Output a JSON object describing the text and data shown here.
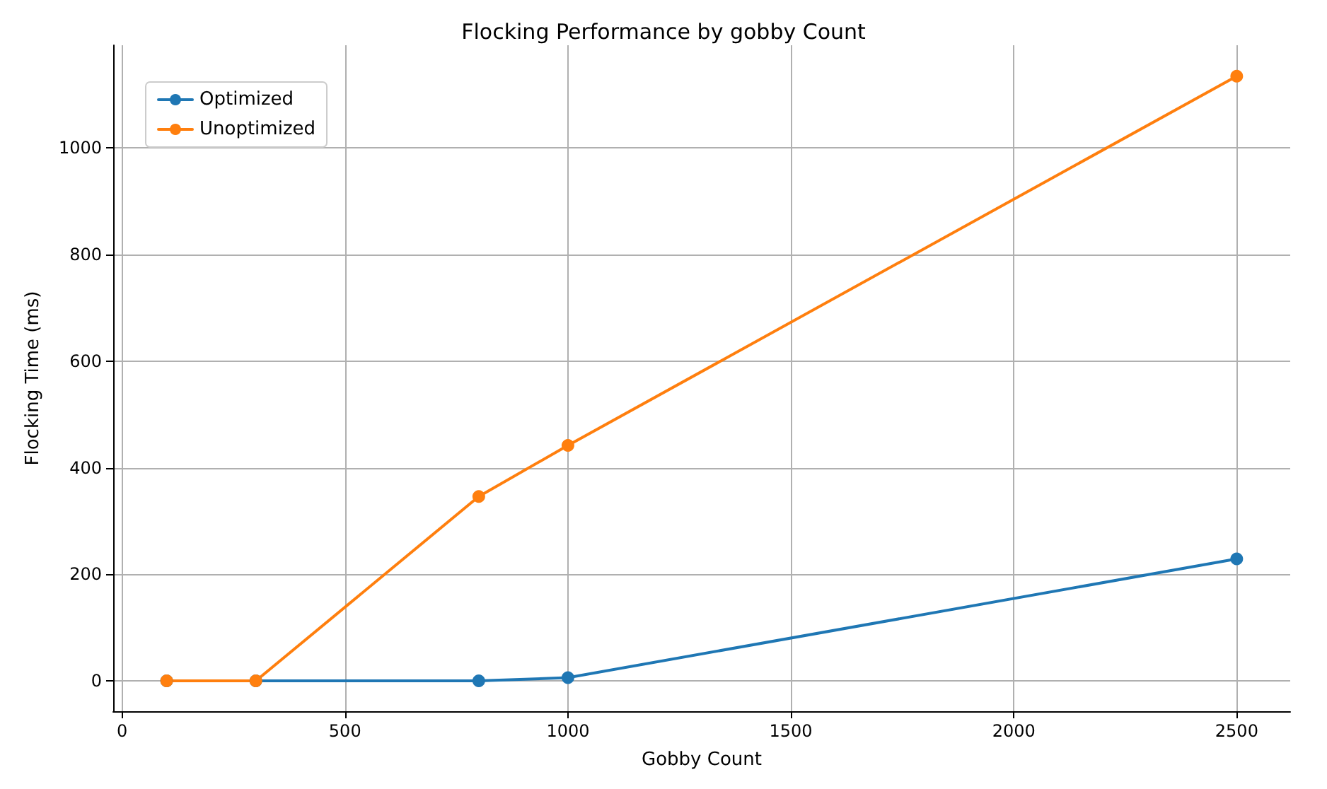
{
  "chart_data": {
    "type": "line",
    "title": "Flocking Performance by gobby Count",
    "xlabel": "Gobby Count",
    "ylabel": "Flocking Time (ms)",
    "x": [
      100,
      300,
      800,
      1000,
      2500
    ],
    "series": [
      {
        "name": "Optimized",
        "color": "#1f77b4",
        "values": [
          0,
          0,
          0,
          6,
          229
        ]
      },
      {
        "name": "Unoptimized",
        "color": "#ff7f0e",
        "values": [
          0,
          0,
          346,
          442,
          1135
        ]
      }
    ],
    "xlim": [
      -20,
      2620
    ],
    "xticks": [
      0,
      500,
      1000,
      1500,
      2000,
      2500
    ],
    "ylim": [
      -57,
      1193
    ],
    "yticks": [
      0,
      200,
      400,
      600,
      800,
      1000
    ],
    "grid": true,
    "legend": "top left",
    "marker": "circle",
    "line_style": "solid"
  }
}
